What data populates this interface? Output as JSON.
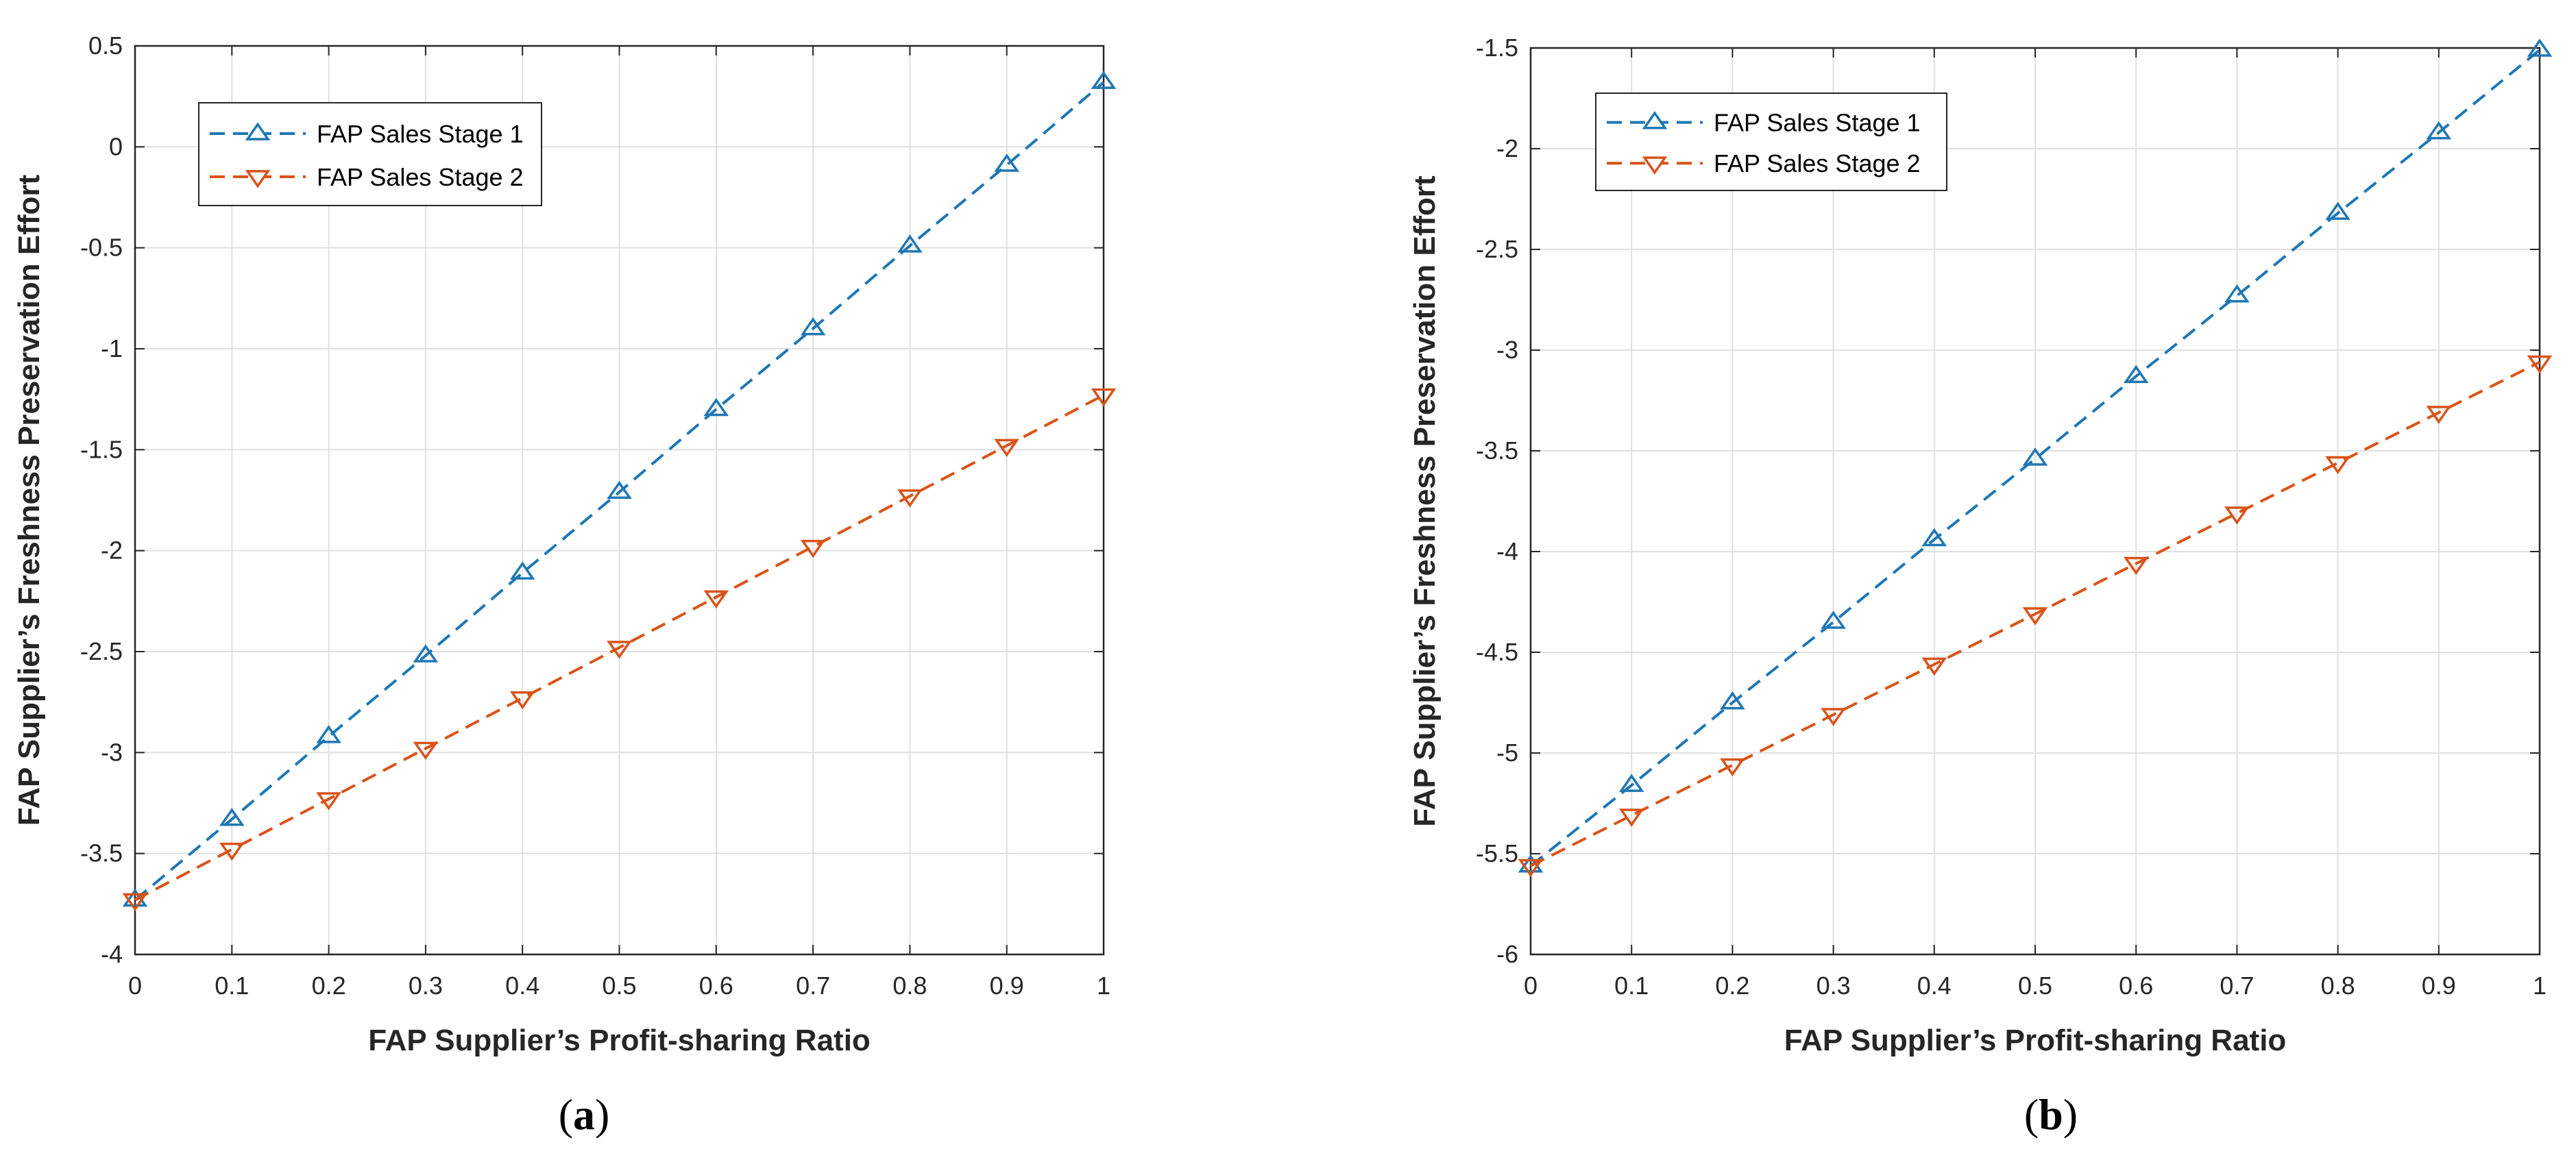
{
  "chart_data": [
    {
      "type": "line",
      "panel_label": "a",
      "title": "",
      "xlabel": "FAP Supplier’s Profit-sharing Ratio",
      "ylabel": "FAP Supplier’s Freshness Preservation Effort",
      "x": [
        0,
        0.1,
        0.2,
        0.3,
        0.4,
        0.5,
        0.6,
        0.7,
        0.8,
        0.9,
        1
      ],
      "xlim": [
        0,
        1
      ],
      "ylim": [
        -4,
        0.5
      ],
      "xticks": [
        "0",
        "0.1",
        "0.2",
        "0.3",
        "0.4",
        "0.5",
        "0.6",
        "0.7",
        "0.8",
        "0.9",
        "1"
      ],
      "yticks": [
        "-4",
        "-3.5",
        "-3",
        "-2.5",
        "-2",
        "-1.5",
        "-1",
        "-0.5",
        "0",
        "0.5"
      ],
      "ytick_values": [
        -4,
        -3.5,
        -3,
        -2.5,
        -2,
        -1.5,
        -1,
        -0.5,
        0,
        0.5
      ],
      "grid": true,
      "legend_position": "top-left",
      "series": [
        {
          "name": "FAP Sales Stage 1",
          "color": "#1f77b4",
          "marker": "triangle-up",
          "values": [
            -3.73,
            -3.33,
            -2.92,
            -2.52,
            -2.11,
            -1.71,
            -1.3,
            -0.9,
            -0.49,
            -0.09,
            0.32
          ]
        },
        {
          "name": "FAP Sales Stage 2",
          "color": "#d95319",
          "marker": "triangle-down",
          "values": [
            -3.73,
            -3.48,
            -3.23,
            -2.98,
            -2.73,
            -2.48,
            -2.23,
            -1.98,
            -1.73,
            -1.48,
            -1.23
          ]
        }
      ]
    },
    {
      "type": "line",
      "panel_label": "b",
      "title": "",
      "xlabel": "FAP Supplier’s Profit-sharing Ratio",
      "ylabel": "FAP Supplier’s Freshness Preservation Effort",
      "x": [
        0,
        0.1,
        0.2,
        0.3,
        0.4,
        0.5,
        0.6,
        0.7,
        0.8,
        0.9,
        1
      ],
      "xlim": [
        0,
        1
      ],
      "ylim": [
        -6,
        -1.5
      ],
      "xticks": [
        "0",
        "0.1",
        "0.2",
        "0.3",
        "0.4",
        "0.5",
        "0.6",
        "0.7",
        "0.8",
        "0.9",
        "1"
      ],
      "yticks": [
        "-6",
        "-5.5",
        "-5",
        "-4.5",
        "-4",
        "-3.5",
        "-3",
        "-2.5",
        "-2",
        "-1.5"
      ],
      "ytick_values": [
        -6,
        -5.5,
        -5,
        -4.5,
        -4,
        -3.5,
        -3,
        -2.5,
        -2,
        -1.5
      ],
      "grid": true,
      "legend_position": "top-left",
      "series": [
        {
          "name": "FAP Sales Stage 1",
          "color": "#1f77b4",
          "marker": "triangle-up",
          "values": [
            -5.56,
            -5.16,
            -4.75,
            -4.35,
            -3.94,
            -3.54,
            -3.13,
            -2.73,
            -2.32,
            -1.92,
            -1.51
          ]
        },
        {
          "name": "FAP Sales Stage 2",
          "color": "#d95319",
          "marker": "triangle-down",
          "values": [
            -5.56,
            -5.31,
            -5.06,
            -4.81,
            -4.56,
            -4.31,
            -4.06,
            -3.81,
            -3.56,
            -3.31,
            -3.06
          ]
        }
      ]
    }
  ],
  "captions": {
    "a": {
      "open": "(",
      "letter": "a",
      "close": ")"
    },
    "b": {
      "open": "(",
      "letter": "b",
      "close": ")"
    }
  }
}
